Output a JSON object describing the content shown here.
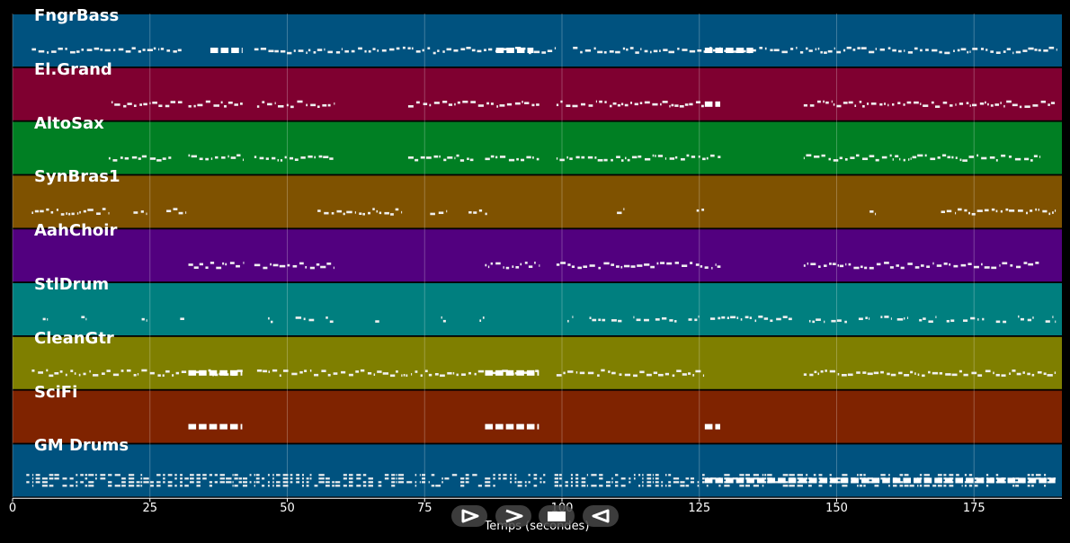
{
  "chart_data": {
    "type": "piano-roll",
    "xlabel": "Temps (secondes)",
    "xlim": [
      0,
      191
    ],
    "x_ticks": [
      0,
      25,
      50,
      75,
      100,
      125,
      150,
      175
    ],
    "x_tick_labels": [
      "0",
      "25",
      "50",
      "75",
      "100",
      "125",
      "150",
      "175"
    ],
    "grid": true,
    "tracks": [
      {
        "name": "FngrBass",
        "color": "#00527f",
        "segments": [
          [
            3.5,
            31
          ],
          [
            44,
            99
          ],
          [
            102,
            190
          ]
        ],
        "dense": [
          [
            36,
            42
          ],
          [
            88,
            95
          ],
          [
            126,
            135
          ]
        ]
      },
      {
        "name": "El.Grand",
        "color": "#7f0030",
        "segments": [
          [
            18,
            31
          ],
          [
            32,
            42
          ],
          [
            44.5,
            58.5
          ],
          [
            72,
            96
          ],
          [
            99,
            126
          ],
          [
            144,
            190
          ]
        ],
        "dense": [
          [
            126,
            129
          ]
        ]
      },
      {
        "name": "AltoSax",
        "color": "#007f23",
        "segments": [
          [
            17.5,
            29
          ],
          [
            32,
            42
          ],
          [
            44,
            58.5
          ],
          [
            72,
            84
          ],
          [
            86,
            96
          ],
          [
            99,
            129
          ],
          [
            144,
            187
          ]
        ],
        "dense": []
      },
      {
        "name": "SynBras1",
        "color": "#7f5200",
        "segments": [
          [
            3.5,
            17.5
          ],
          [
            22,
            24.5
          ],
          [
            28,
            31.5
          ],
          [
            55.5,
            71
          ],
          [
            76,
            79
          ],
          [
            83,
            86.5
          ],
          [
            110,
            111.5
          ],
          [
            124.5,
            126
          ],
          [
            156,
            157
          ],
          [
            169,
            190
          ]
        ],
        "dense": []
      },
      {
        "name": "AahChoir",
        "color": "#52007f",
        "segments": [
          [
            32,
            42
          ],
          [
            44,
            58.5
          ],
          [
            86,
            96
          ],
          [
            99,
            129
          ],
          [
            144,
            187
          ]
        ],
        "dense": []
      },
      {
        "name": "StlDrum",
        "color": "#007f7f",
        "segments": [
          [
            5.5,
            6.5
          ],
          [
            12.5,
            13.5
          ],
          [
            23.5,
            24.5
          ],
          [
            30.5,
            31.5
          ],
          [
            46.5,
            47.5
          ],
          [
            51.5,
            55
          ],
          [
            57,
            58.5
          ],
          [
            66,
            67
          ],
          [
            78,
            79
          ],
          [
            85,
            86
          ],
          [
            101,
            102
          ],
          [
            105,
            108
          ],
          [
            109,
            111
          ],
          [
            113,
            116
          ],
          [
            117,
            121
          ],
          [
            123,
            125
          ],
          [
            127,
            142
          ],
          [
            145,
            148
          ],
          [
            149,
            152
          ],
          [
            154,
            156
          ],
          [
            158,
            160
          ],
          [
            161,
            163
          ],
          [
            165,
            168
          ],
          [
            170,
            172
          ],
          [
            173,
            177
          ],
          [
            179,
            181
          ],
          [
            183,
            186
          ],
          [
            188,
            190
          ]
        ],
        "dense": []
      },
      {
        "name": "CleanGtr",
        "color": "#7f7f00",
        "segments": [
          [
            3.5,
            42
          ],
          [
            44.5,
            96
          ],
          [
            99,
            126
          ],
          [
            144,
            190
          ]
        ],
        "dense": [
          [
            32,
            42
          ],
          [
            86,
            96
          ]
        ]
      },
      {
        "name": "SciFi",
        "color": "#7f2300",
        "segments": [],
        "dense": [
          [
            32,
            42
          ],
          [
            86,
            96
          ],
          [
            126,
            129
          ]
        ]
      },
      {
        "name": "GM Drums",
        "color": "#00527f",
        "segments": [
          [
            2.5,
            190
          ]
        ],
        "dense": [
          [
            126,
            190
          ]
        ]
      }
    ]
  },
  "controls": [
    {
      "name": "play-forward-button",
      "icon": "play-outline-icon"
    },
    {
      "name": "fast-forward-button",
      "icon": "chevron-right-icon"
    },
    {
      "name": "stop-button",
      "icon": "stop-icon"
    },
    {
      "name": "rewind-button",
      "icon": "play-back-outline-icon"
    }
  ]
}
